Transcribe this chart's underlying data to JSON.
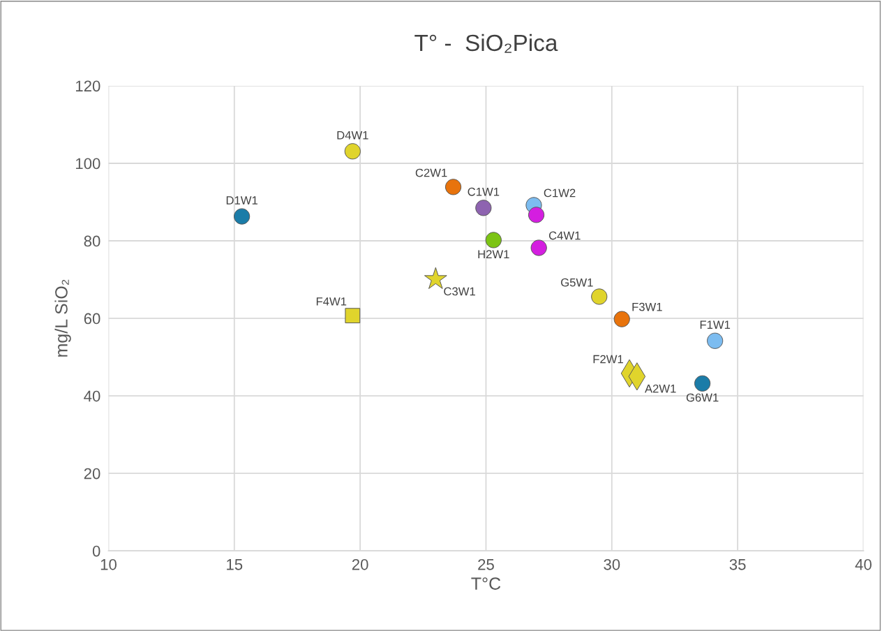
{
  "chart_data": {
    "type": "scatter",
    "title": "T° -  SiO₂Pica",
    "xlabel": "T°C",
    "ylabel": "mg/L SiO₂",
    "xlim": [
      10,
      40
    ],
    "xticks": [
      10,
      15,
      20,
      25,
      30,
      35,
      40
    ],
    "ylim": [
      0,
      120
    ],
    "yticks": [
      0,
      20,
      40,
      60,
      80,
      100,
      120
    ],
    "grid": true,
    "legend": false,
    "series": [
      {
        "name": "D1W1",
        "color": "#1b7ca8",
        "marker": "circle",
        "x": [
          15.3
        ],
        "values": [
          86.3
        ]
      },
      {
        "name": "D4W1",
        "color": "#e0d42c",
        "marker": "circle",
        "x": [
          19.7
        ],
        "values": [
          103.1
        ]
      },
      {
        "name": "C2W1",
        "color": "#e8730c",
        "marker": "circle",
        "x": [
          23.7
        ],
        "values": [
          93.9
        ]
      },
      {
        "name": "C1W1",
        "color": "#8e63b0",
        "marker": "circle",
        "x": [
          24.9
        ],
        "values": [
          88.5
        ]
      },
      {
        "name": "C1W2",
        "color": "#7cbcf0",
        "marker": "circle",
        "x": [
          26.9
        ],
        "values": [
          89.2
        ]
      },
      {
        "color": "#d41ee0",
        "marker": "circle",
        "x": [
          27.0
        ],
        "values": [
          86.7
        ]
      },
      {
        "name": "C4W1",
        "color": "#d41ee0",
        "marker": "circle",
        "x": [
          27.1
        ],
        "values": [
          78.2
        ]
      },
      {
        "name": "H2W1",
        "color": "#7cc414",
        "marker": "circle",
        "x": [
          25.3
        ],
        "values": [
          80.2
        ]
      },
      {
        "name": "C3W1",
        "color": "#e0d42c",
        "marker": "star",
        "x": [
          23.0
        ],
        "values": [
          70.1
        ]
      },
      {
        "name": "F4W1",
        "color": "#e0d42c",
        "marker": "square",
        "x": [
          19.7
        ],
        "values": [
          60.7
        ]
      },
      {
        "name": "G5W1",
        "color": "#e0d42c",
        "marker": "circle",
        "x": [
          29.5
        ],
        "values": [
          65.6
        ]
      },
      {
        "name": "F3W1",
        "color": "#e8730c",
        "marker": "circle",
        "x": [
          30.4
        ],
        "values": [
          59.8
        ]
      },
      {
        "name": "F1W1",
        "color": "#7cbcf0",
        "marker": "circle",
        "x": [
          34.1
        ],
        "values": [
          54.2
        ]
      },
      {
        "name": "F2W1",
        "color": "#e0d42c",
        "marker": "diamond",
        "x": [
          30.7
        ],
        "values": [
          45.8
        ]
      },
      {
        "name": "A2W1",
        "color": "#e0d42c",
        "marker": "diamond",
        "x": [
          31.0
        ],
        "values": [
          45.0
        ]
      },
      {
        "name": "G6W1",
        "color": "#1b7ca8",
        "marker": "circle",
        "x": [
          33.6
        ],
        "values": [
          43.2
        ]
      }
    ]
  }
}
